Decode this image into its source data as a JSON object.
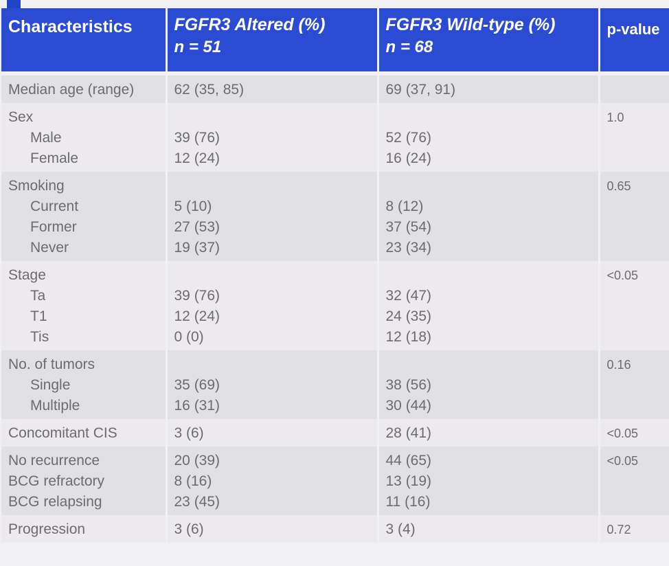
{
  "header": {
    "characteristics": "Characteristics",
    "altered_title": "FGFR3 Altered (%)",
    "altered_n": "n = 51",
    "wildtype_title": "FGFR3 Wild-type (%)",
    "wildtype_n": "n = 68",
    "pvalue": "p-value"
  },
  "rows": {
    "age": {
      "label": "Median age (range)",
      "altered": "62 (35, 85)",
      "wildtype": "69 (37, 91)",
      "p": ""
    },
    "sex": {
      "label": "Sex",
      "p": "1.0",
      "items": [
        {
          "label": "Male",
          "altered": "39 (76)",
          "wildtype": "52 (76)"
        },
        {
          "label": "Female",
          "altered": "12 (24)",
          "wildtype": "16 (24)"
        }
      ]
    },
    "smoking": {
      "label": "Smoking",
      "p": "0.65",
      "items": [
        {
          "label": "Current",
          "altered": "5 (10)",
          "wildtype": "8 (12)"
        },
        {
          "label": "Former",
          "altered": "27 (53)",
          "wildtype": "37 (54)"
        },
        {
          "label": "Never",
          "altered": "19 (37)",
          "wildtype": "23 (34)"
        }
      ]
    },
    "stage": {
      "label": "Stage",
      "p": "<0.05",
      "items": [
        {
          "label": "Ta",
          "altered": "39 (76)",
          "wildtype": "32 (47)"
        },
        {
          "label": "T1",
          "altered": "12 (24)",
          "wildtype": "24 (35)"
        },
        {
          "label": "Tis",
          "altered": "0 (0)",
          "wildtype": "12 (18)"
        }
      ]
    },
    "tumors": {
      "label": "No. of tumors",
      "p": "0.16",
      "items": [
        {
          "label": "Single",
          "altered": "35 (69)",
          "wildtype": "38 (56)"
        },
        {
          "label": "Multiple",
          "altered": "16 (31)",
          "wildtype": "30 (44)"
        }
      ]
    },
    "cis": {
      "label": "Concomitant CIS",
      "altered": "3 (6)",
      "wildtype": "28 (41)",
      "p": "<0.05"
    },
    "recurrence": {
      "p": "<0.05",
      "items": [
        {
          "label": "No recurrence",
          "altered": "20 (39)",
          "wildtype": "44 (65)"
        },
        {
          "label": "BCG refractory",
          "altered": "8 (16)",
          "wildtype": "13 (19)"
        },
        {
          "label": "BCG relapsing",
          "altered": "23 (45)",
          "wildtype": "11 (16)"
        }
      ]
    },
    "progression": {
      "label": "Progression",
      "altered": "3 (6)",
      "wildtype": "3 (4)",
      "p": "0.72"
    }
  },
  "colors": {
    "header_bg": "#2b4bd2",
    "row_dark": "#e1e0e4",
    "row_light": "#eceaee",
    "text": "#6d6b72"
  }
}
